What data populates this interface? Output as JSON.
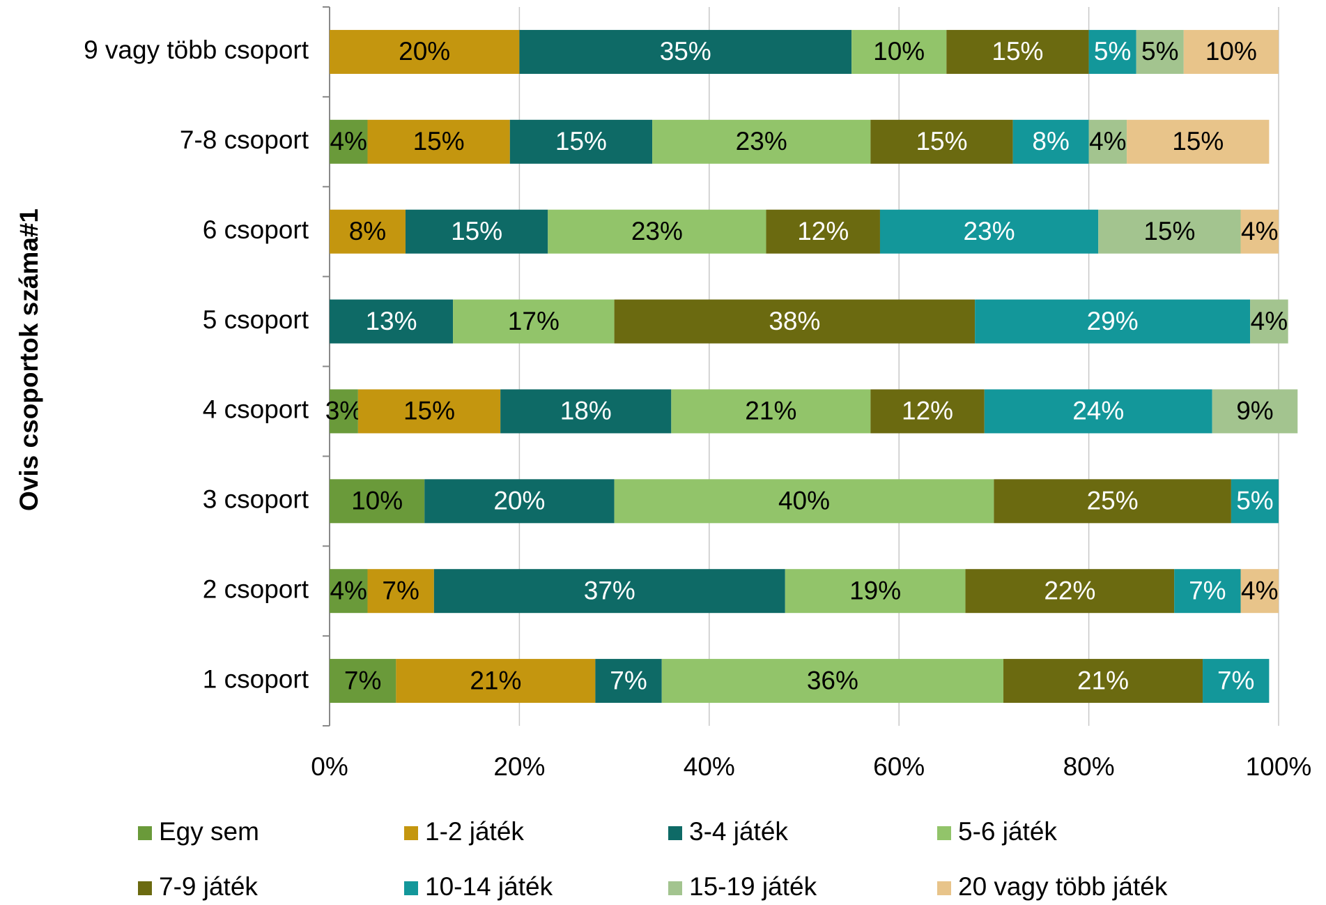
{
  "chart_data": {
    "type": "stacked_barh",
    "ylabel": "Ovis csoportok száma#1",
    "categories": [
      "1 csoport",
      "2 csoport",
      "3 csoport",
      "4 csoport",
      "5 csoport",
      "6 csoport",
      "7-8 csoport",
      "9 vagy több csoport"
    ],
    "series": [
      {
        "name": "Egy sem",
        "color": "#6a9a3a",
        "values": [
          7,
          4,
          10,
          3,
          null,
          null,
          4,
          null
        ]
      },
      {
        "name": "1-2 játék",
        "color": "#c4960f",
        "values": [
          21,
          7,
          null,
          15,
          null,
          8,
          15,
          20
        ]
      },
      {
        "name": "3-4 játék",
        "color": "#0e6a66",
        "values": [
          7,
          37,
          20,
          18,
          13,
          15,
          15,
          35
        ]
      },
      {
        "name": "5-6 játék",
        "color": "#92c46a",
        "values": [
          36,
          19,
          40,
          21,
          17,
          23,
          23,
          10
        ]
      },
      {
        "name": "7-9 játék",
        "color": "#6b6a10",
        "values": [
          21,
          22,
          25,
          12,
          38,
          12,
          15,
          15
        ]
      },
      {
        "name": "10-14 játék",
        "color": "#13979a",
        "values": [
          7,
          7,
          5,
          24,
          29,
          23,
          8,
          5
        ]
      },
      {
        "name": "15-19 játék",
        "color": "#a3c48f",
        "values": [
          null,
          null,
          null,
          9,
          4,
          15,
          4,
          5
        ]
      },
      {
        "name": "20 vagy több játék",
        "color": "#e8c48a",
        "values": [
          null,
          4,
          null,
          null,
          null,
          4,
          15,
          10
        ]
      }
    ],
    "value_labels": [
      [
        "7%",
        "4%",
        "10%",
        "3%",
        null,
        null,
        "4%",
        null
      ],
      [
        "21%",
        "7%",
        null,
        "15%",
        null,
        "8%",
        "15%",
        "20%"
      ],
      [
        "7%",
        "37%",
        "20%",
        "18%",
        "13%",
        "15%",
        "15%",
        "35%"
      ],
      [
        "36%",
        "19%",
        "40%",
        "21%",
        "17%",
        "23%",
        "23%",
        "10%"
      ],
      [
        "21%",
        "22%",
        "25%",
        "12%",
        "38%",
        "12%",
        "15%",
        "15%"
      ],
      [
        "7%",
        "7%",
        "5%",
        "24%",
        "29%",
        "23%",
        "8%",
        "5%"
      ],
      [
        null,
        null,
        null,
        "9%",
        "4%",
        "15%",
        "4%",
        "5%"
      ],
      [
        null,
        "4%",
        null,
        null,
        null,
        "4%",
        "15%",
        "10%"
      ]
    ],
    "xlim": [
      0,
      100
    ],
    "xticks": [
      {
        "value": 0,
        "label": "0%"
      },
      {
        "value": 20,
        "label": "20%"
      },
      {
        "value": 40,
        "label": "40%"
      },
      {
        "value": 60,
        "label": "60%"
      },
      {
        "value": 80,
        "label": "80%"
      },
      {
        "value": 100,
        "label": "100%"
      }
    ],
    "grid": true,
    "legend": "bottom"
  }
}
